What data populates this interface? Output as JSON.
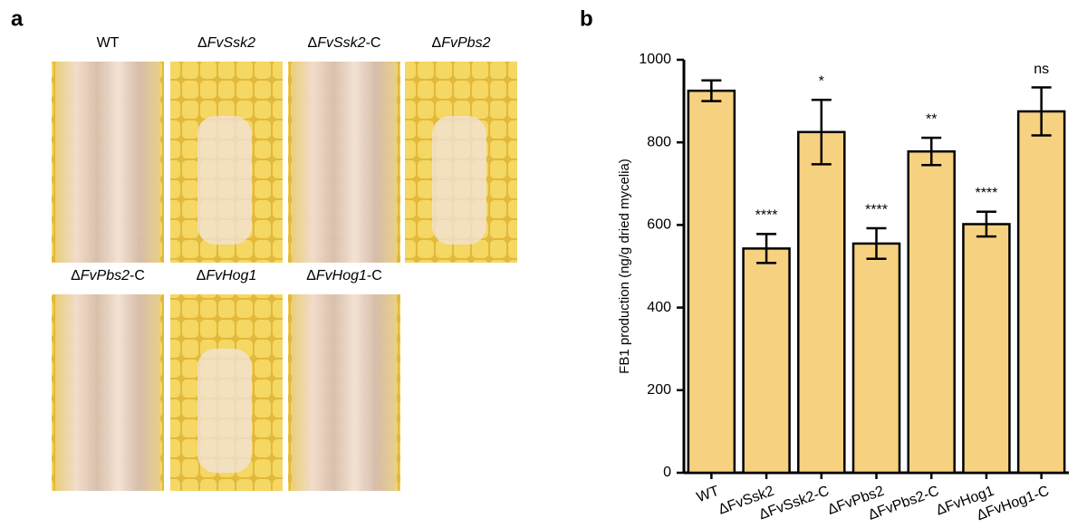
{
  "panel_a": {
    "label": "a",
    "images": [
      {
        "prefix": "WT"
      },
      {
        "prefix": "Δ",
        "italic": "FvSsk2"
      },
      {
        "prefix": "Δ",
        "italic": "FvSsk2",
        "suffix": "-C"
      },
      {
        "prefix": "Δ",
        "italic": "FvPbs2"
      },
      {
        "prefix": "Δ",
        "italic": "FvPbs2",
        "suffix": "-C"
      },
      {
        "prefix": "Δ",
        "italic": "FvHog1"
      },
      {
        "prefix": "Δ",
        "italic": "FvHog1",
        "suffix": "-C"
      }
    ]
  },
  "chart_data": {
    "type": "bar",
    "panel_label": "b",
    "ylabel": "FB1 production (ng/g dried mycelia)",
    "categories": [
      "WT",
      "ΔFvSsk2",
      "ΔFvSsk2-C",
      "ΔFvPbs2",
      "ΔFvPbs2-C",
      "ΔFvHog1",
      "ΔFvHog1-C"
    ],
    "values": [
      925,
      543,
      825,
      555,
      778,
      602,
      875
    ],
    "errors": [
      25,
      35,
      78,
      37,
      33,
      30,
      58
    ],
    "annotations": [
      null,
      "****",
      "*",
      "****",
      "**",
      "****",
      "ns"
    ],
    "color": "#f6d17f",
    "ylim": [
      0,
      1000
    ],
    "yticks": [
      0,
      200,
      400,
      600,
      800,
      1000
    ]
  }
}
